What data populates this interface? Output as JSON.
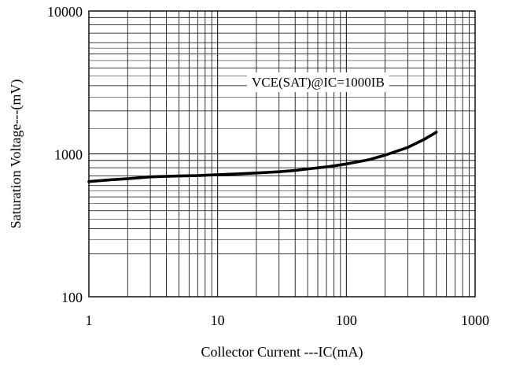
{
  "chart_data": {
    "type": "line",
    "title": "",
    "xlabel": "Collector Current ---IC(mA)",
    "ylabel": "Saturation Voltage---(mV)",
    "x_scale": "log",
    "y_scale": "log",
    "xlim": [
      1,
      1000
    ],
    "ylim": [
      100,
      10000
    ],
    "x_ticks": [
      1,
      10,
      100,
      1000
    ],
    "y_ticks": [
      100,
      1000,
      10000
    ],
    "x_tick_labels": [
      "1",
      "10",
      "100",
      "1000"
    ],
    "y_tick_labels": [
      "100",
      "1000",
      "10000"
    ],
    "grid": true,
    "legend": "none",
    "annotation": "VCE(SAT)@IC=1000IB",
    "colors": {
      "line": "#000000",
      "grid": "#000000",
      "background": "#ffffff"
    },
    "series": [
      {
        "x": [
          1,
          1.5,
          2,
          3,
          5,
          7,
          10,
          15,
          20,
          30,
          40,
          50,
          70,
          100,
          150,
          200,
          300,
          400,
          500
        ],
        "y": [
          640,
          660,
          670,
          690,
          700,
          705,
          715,
          725,
          735,
          750,
          765,
          785,
          810,
          850,
          910,
          980,
          1110,
          1260,
          1420
        ]
      }
    ]
  }
}
